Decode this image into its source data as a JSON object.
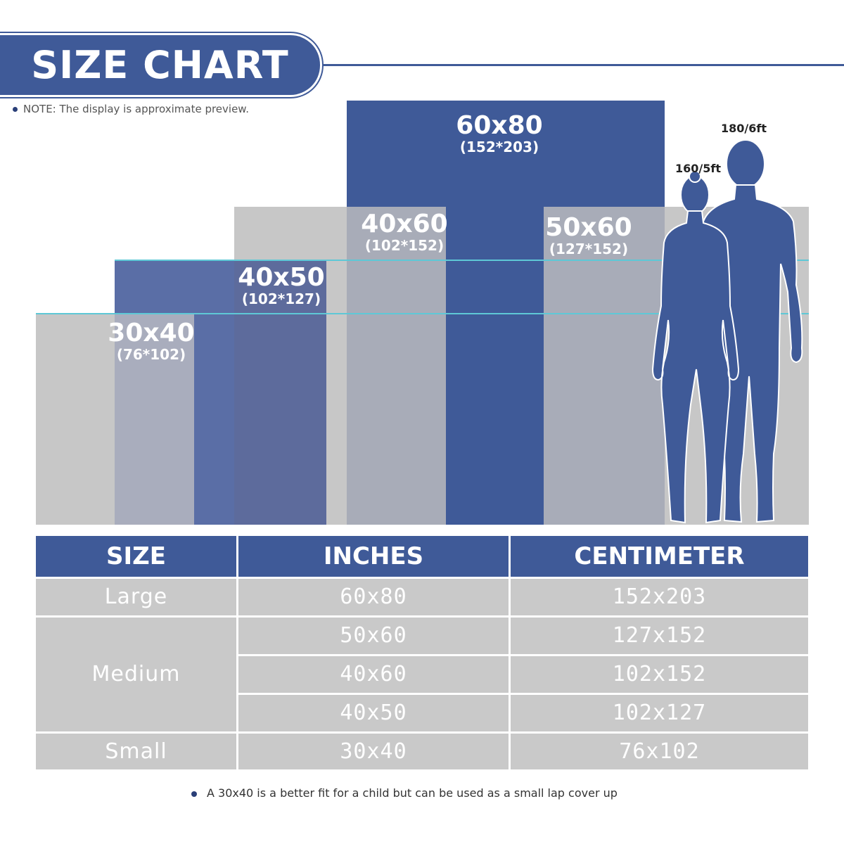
{
  "header": {
    "title": "SIZE CHART",
    "note": "NOTE: The display is approximate preview."
  },
  "blankets": [
    {
      "inches": "60x80",
      "cm": "(152*203)"
    },
    {
      "inches": "40x60",
      "cm": "(102*152)"
    },
    {
      "inches": "50x60",
      "cm": "(127*152)"
    },
    {
      "inches": "40x50",
      "cm": "(102*127)"
    },
    {
      "inches": "30x40",
      "cm": "(76*102)"
    }
  ],
  "people": {
    "tall": "180/6ft",
    "short": "160/5ft"
  },
  "colors": {
    "navy": "#3f5a98",
    "gray": "#c9c9c9",
    "accent_line": "#5ec8d6"
  },
  "table": {
    "headers": [
      "SIZE",
      "INCHES",
      "CENTIMETER"
    ],
    "groups": [
      "Large",
      "Medium",
      "Small"
    ],
    "rows": [
      {
        "inches": "60x80",
        "cm": "152x203"
      },
      {
        "inches": "50x60",
        "cm": "127x152"
      },
      {
        "inches": "40x60",
        "cm": "102x152"
      },
      {
        "inches": "40x50",
        "cm": "102x127"
      },
      {
        "inches": "30x40",
        "cm": "76x102"
      }
    ]
  },
  "footnote": "A 30x40 is a better fit for a child but can be used as a small lap cover up"
}
